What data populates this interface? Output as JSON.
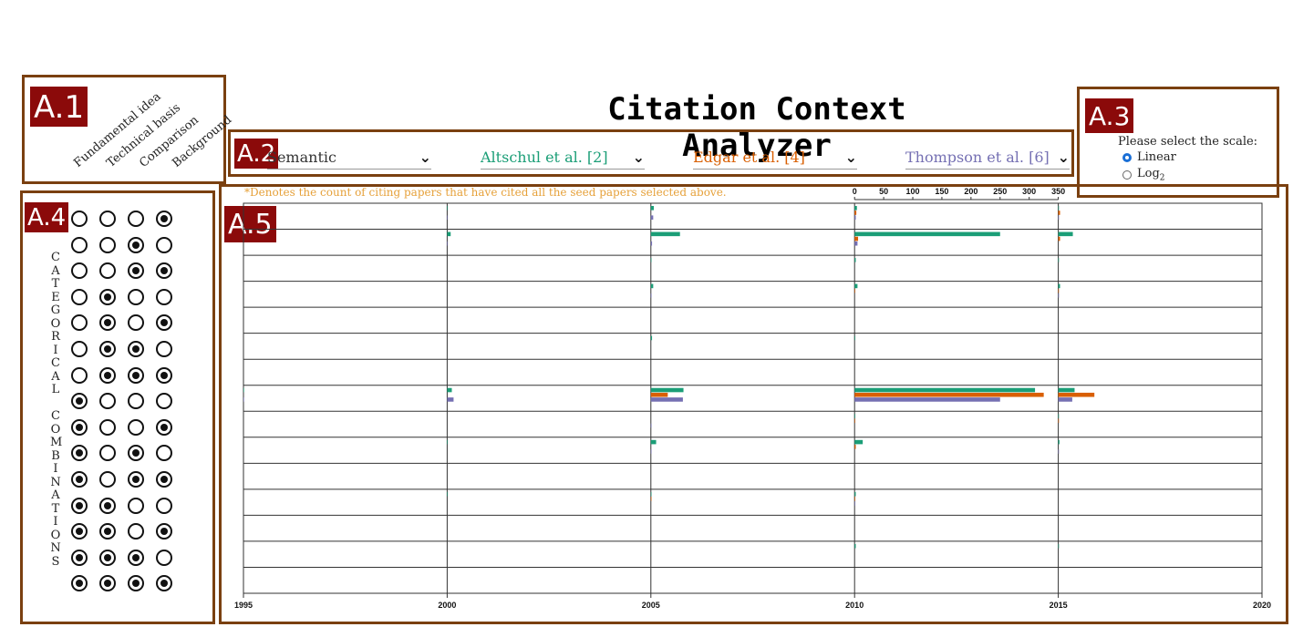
{
  "title": "Citation Context Analyzer",
  "panel_tags": [
    "A.1",
    "A.2",
    "A.3",
    "A.4",
    "A.5"
  ],
  "categories": {
    "labels": [
      "Fundamental idea",
      "Technical basis",
      "Comparison",
      "Background"
    ]
  },
  "dropdowns": [
    {
      "label": "Semantic",
      "color": "#333333"
    },
    {
      "label": "Altschul et al. [2]",
      "color": "#1b9e77"
    },
    {
      "label": "Edgar et al. [4]",
      "color": "#d95f02"
    },
    {
      "label": "Thompson et al. [6]",
      "color": "#7570b3"
    }
  ],
  "scale": {
    "question": "Please select the scale:",
    "options": [
      {
        "label": "Linear",
        "selected": true
      },
      {
        "label": "Log",
        "sub": "2",
        "selected": false
      }
    ]
  },
  "combinations": {
    "vertical_label": "CATEGORICAL COMBINATIONS",
    "rows": [
      [
        0,
        0,
        0,
        1
      ],
      [
        0,
        0,
        1,
        0
      ],
      [
        0,
        0,
        1,
        1
      ],
      [
        0,
        1,
        0,
        0
      ],
      [
        0,
        1,
        0,
        1
      ],
      [
        0,
        1,
        1,
        0
      ],
      [
        0,
        1,
        1,
        1
      ],
      [
        1,
        0,
        0,
        0
      ],
      [
        1,
        0,
        0,
        1
      ],
      [
        1,
        0,
        1,
        0
      ],
      [
        1,
        0,
        1,
        1
      ],
      [
        1,
        1,
        0,
        0
      ],
      [
        1,
        1,
        0,
        1
      ],
      [
        1,
        1,
        1,
        0
      ],
      [
        1,
        1,
        1,
        1
      ]
    ]
  },
  "note": "*Denotes the count of citing papers that have cited all the seed papers selected above.",
  "chart_data": {
    "type": "bar",
    "x_ticks": [
      "1995",
      "2000",
      "2005",
      "2010",
      "2015",
      "2020"
    ],
    "count_ticks": [
      "0",
      "50",
      "100",
      "150",
      "200",
      "250",
      "300",
      "350"
    ],
    "series_colors": [
      "#1b9e77",
      "#d95f02",
      "#7570b3"
    ],
    "rows": [
      {
        "1995": [
          0,
          0,
          0
        ],
        "2000": [
          1,
          0,
          1
        ],
        "2005": [
          5,
          0,
          4
        ],
        "2010": [
          4,
          3,
          2
        ],
        "2015": [
          1,
          3,
          1
        ]
      },
      {
        "1995": [
          0,
          0,
          0
        ],
        "2000": [
          6,
          0,
          1
        ],
        "2005": [
          50,
          0,
          2
        ],
        "2010": [
          250,
          6,
          5
        ],
        "2015": [
          25,
          3,
          0
        ]
      },
      {
        "1995": [
          0,
          0,
          0
        ],
        "2000": [
          0,
          0,
          0
        ],
        "2005": [
          1,
          0,
          0
        ],
        "2010": [
          2,
          0,
          0
        ],
        "2015": [
          1,
          0,
          0
        ]
      },
      {
        "1995": [
          0,
          0,
          0
        ],
        "2000": [
          0,
          0,
          0
        ],
        "2005": [
          4,
          0,
          1
        ],
        "2010": [
          5,
          1,
          0
        ],
        "2015": [
          3,
          1,
          1
        ]
      },
      {
        "1995": [
          0,
          0,
          0
        ],
        "2000": [
          0,
          0,
          0
        ],
        "2005": [
          0,
          0,
          0
        ],
        "2010": [
          0,
          0,
          0
        ],
        "2015": [
          0,
          0,
          0
        ]
      },
      {
        "1995": [
          0,
          0,
          0
        ],
        "2000": [
          0,
          0,
          0
        ],
        "2005": [
          2,
          0,
          0
        ],
        "2010": [
          1,
          0,
          0
        ],
        "2015": [
          0,
          0,
          0
        ]
      },
      {
        "1995": [
          0,
          0,
          0
        ],
        "2000": [
          0,
          0,
          0
        ],
        "2005": [
          0,
          0,
          0
        ],
        "2010": [
          0,
          0,
          0
        ],
        "2015": [
          0,
          0,
          0
        ]
      },
      {
        "1995": [
          1,
          0,
          1
        ],
        "2000": [
          8,
          0,
          11
        ],
        "2005": [
          56,
          29,
          55
        ],
        "2010": [
          310,
          325,
          250
        ],
        "2015": [
          28,
          62,
          24
        ]
      },
      {
        "1995": [
          0,
          0,
          0
        ],
        "2000": [
          0,
          0,
          0
        ],
        "2005": [
          0,
          0,
          1
        ],
        "2010": [
          1,
          1,
          0
        ],
        "2015": [
          1,
          1,
          0
        ]
      },
      {
        "1995": [
          0,
          0,
          0
        ],
        "2000": [
          1,
          0,
          0
        ],
        "2005": [
          9,
          0,
          1
        ],
        "2010": [
          14,
          2,
          0
        ],
        "2015": [
          2,
          0,
          1
        ]
      },
      {
        "1995": [
          0,
          0,
          0
        ],
        "2000": [
          0,
          0,
          0
        ],
        "2005": [
          0,
          0,
          0
        ],
        "2010": [
          0,
          0,
          0
        ],
        "2015": [
          0,
          0,
          0
        ]
      },
      {
        "1995": [
          0,
          0,
          0
        ],
        "2000": [
          1,
          0,
          0
        ],
        "2005": [
          1,
          1,
          0
        ],
        "2010": [
          2,
          1,
          1
        ],
        "2015": [
          0,
          0,
          0
        ]
      },
      {
        "1995": [
          0,
          0,
          0
        ],
        "2000": [
          0,
          0,
          0
        ],
        "2005": [
          0,
          0,
          0
        ],
        "2010": [
          0,
          0,
          0
        ],
        "2015": [
          0,
          0,
          0
        ]
      },
      {
        "1995": [
          0,
          0,
          0
        ],
        "2000": [
          0,
          0,
          0
        ],
        "2005": [
          0,
          0,
          0
        ],
        "2010": [
          2,
          0,
          0
        ],
        "2015": [
          1,
          0,
          0
        ]
      },
      {
        "1995": [
          0,
          0,
          0
        ],
        "2000": [
          0,
          0,
          0
        ],
        "2005": [
          0,
          0,
          0
        ],
        "2010": [
          0,
          0,
          0
        ],
        "2015": [
          0,
          0,
          0
        ]
      }
    ]
  }
}
